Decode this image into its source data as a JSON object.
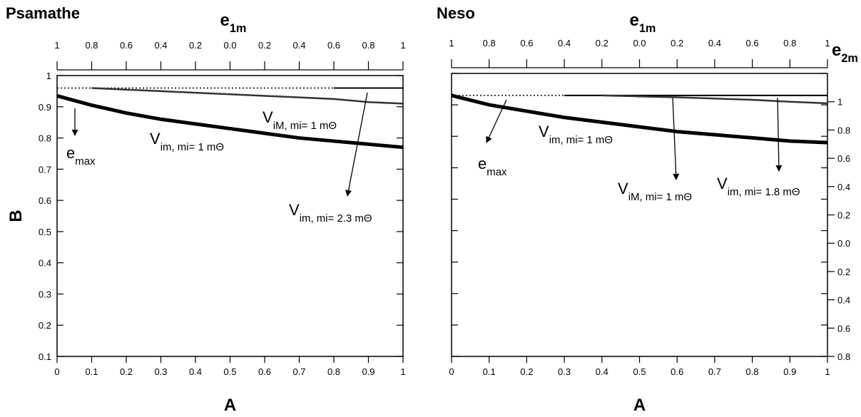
{
  "chart_data": [
    {
      "type": "line",
      "title": "Psamathe",
      "xlabel": "A",
      "ylabel": "B",
      "x2label": {
        "text": "e",
        "sub": "1m"
      },
      "xlim": [
        0,
        1
      ],
      "xticks": [
        0,
        0.1,
        0.2,
        0.3,
        0.4,
        0.5,
        0.6,
        0.7,
        0.8,
        0.9,
        1
      ],
      "ylim": [
        0.1,
        1
      ],
      "yticks": [
        0.1,
        0.2,
        0.3,
        0.4,
        0.5,
        0.6,
        0.7,
        0.8,
        0.9,
        1
      ],
      "ytick_labels": true,
      "x2lim": [
        -1,
        1
      ],
      "x2ticks": [
        {
          "value": -1,
          "label": "1"
        },
        {
          "value": -0.8,
          "label": "0.8"
        },
        {
          "value": -0.6,
          "label": "0.6"
        },
        {
          "value": -0.4,
          "label": "0.4"
        },
        {
          "value": -0.2,
          "label": "0.2"
        },
        {
          "value": 0,
          "label": "0.0"
        },
        0.2,
        0.4,
        0.6,
        0.8,
        1
      ],
      "x": [
        0,
        0.1,
        0.2,
        0.3,
        0.4,
        0.5,
        0.6,
        0.7,
        0.8,
        0.9,
        1
      ],
      "series": [
        {
          "color": "#000000",
          "style": "dotted",
          "linewidth": 1.5,
          "values": [
            0.96,
            0.96,
            0.96,
            0.96,
            0.96,
            0.96,
            0.96,
            0.96,
            0.96,
            null,
            null
          ]
        },
        {
          "color": "#000000",
          "style": "solid",
          "linewidth": 2,
          "values": [
            null,
            null,
            null,
            null,
            null,
            null,
            null,
            null,
            0.96,
            0.96,
            0.96
          ]
        },
        {
          "color": "#333333",
          "style": "solid",
          "linewidth": 2.5,
          "values": [
            null,
            0.96,
            0.955,
            0.95,
            0.945,
            0.94,
            0.935,
            0.93,
            0.925,
            0.915,
            0.91
          ]
        },
        {
          "color": "#000000",
          "style": "solid",
          "linewidth": 5,
          "values": [
            0.935,
            0.905,
            0.88,
            0.86,
            0.845,
            0.83,
            0.815,
            0.8,
            0.79,
            0.78,
            0.77
          ]
        }
      ],
      "annotations": [
        {
          "text": "e",
          "sub": "max"
        },
        {
          "text": "V",
          "sub": "iM, mi= 1 mΘ"
        },
        {
          "text": "V",
          "sub": "im, mi= 1 mΘ"
        },
        {
          "text": "V",
          "sub": "im, mi= 2.3 mΘ"
        }
      ]
    },
    {
      "type": "line",
      "title": "Neso",
      "xlabel": "A",
      "x2label": {
        "text": "e",
        "sub": "1m"
      },
      "y2label": {
        "text": "e",
        "sub": "2m"
      },
      "xlim": [
        0,
        1
      ],
      "xticks": [
        0,
        0.1,
        0.2,
        0.3,
        0.4,
        0.5,
        0.6,
        0.7,
        0.8,
        0.9,
        1
      ],
      "ylim": [
        0.1,
        1
      ],
      "yticks": [
        0.1,
        0.2,
        0.3,
        0.4,
        0.5,
        0.6,
        0.7,
        0.8,
        0.9,
        1
      ],
      "ytick_labels": false,
      "x2lim": [
        -1,
        1
      ],
      "x2ticks": [
        {
          "value": -1,
          "label": "1"
        },
        {
          "value": -0.8,
          "label": "0.8"
        },
        {
          "value": -0.6,
          "label": "0.6"
        },
        {
          "value": -0.4,
          "label": "0.4"
        },
        {
          "value": -0.2,
          "label": "0.2"
        },
        {
          "value": 0,
          "label": "0.0"
        },
        0.2,
        0.4,
        0.6,
        0.8,
        1
      ],
      "y2lim": [
        -0.8,
        1.2
      ],
      "y2ticks": [
        1,
        0.8,
        0.6,
        0.4,
        0.2,
        {
          "value": 0,
          "label": "0.0"
        },
        {
          "value": -0.2,
          "label": "0.2"
        },
        {
          "value": -0.4,
          "label": "0.4"
        },
        {
          "value": -0.6,
          "label": "0.6"
        },
        {
          "value": -0.8,
          "label": "0.8"
        }
      ],
      "x": [
        0,
        0.1,
        0.2,
        0.3,
        0.4,
        0.5,
        0.6,
        0.7,
        0.8,
        0.9,
        1
      ],
      "series": [
        {
          "color": "#000000",
          "style": "dotted",
          "linewidth": 1.5,
          "values": [
            0.93,
            0.93,
            0.93,
            0.93,
            null,
            null,
            null,
            null,
            null,
            null,
            null
          ]
        },
        {
          "color": "#000000",
          "style": "solid",
          "linewidth": 2,
          "values": [
            null,
            null,
            null,
            0.93,
            0.93,
            0.93,
            0.93,
            0.93,
            0.93,
            0.93,
            0.93
          ]
        },
        {
          "color": "#333333",
          "style": "solid",
          "linewidth": 2.5,
          "values": [
            null,
            null,
            null,
            null,
            0.93,
            0.927,
            0.924,
            0.92,
            0.916,
            0.91,
            0.905
          ]
        },
        {
          "color": "#000000",
          "style": "solid",
          "linewidth": 5,
          "values": [
            0.93,
            0.9,
            0.88,
            0.86,
            0.845,
            0.83,
            0.815,
            0.805,
            0.795,
            0.785,
            0.78
          ]
        }
      ],
      "annotations": [
        {
          "text": "V",
          "sub": "im, mi= 1 mΘ"
        },
        {
          "text": "e",
          "sub": "max"
        },
        {
          "text": "V",
          "sub": "iM, mi= 1 mΘ"
        },
        {
          "text": "V",
          "sub": "im, mi= 1.8 mΘ"
        }
      ]
    }
  ]
}
